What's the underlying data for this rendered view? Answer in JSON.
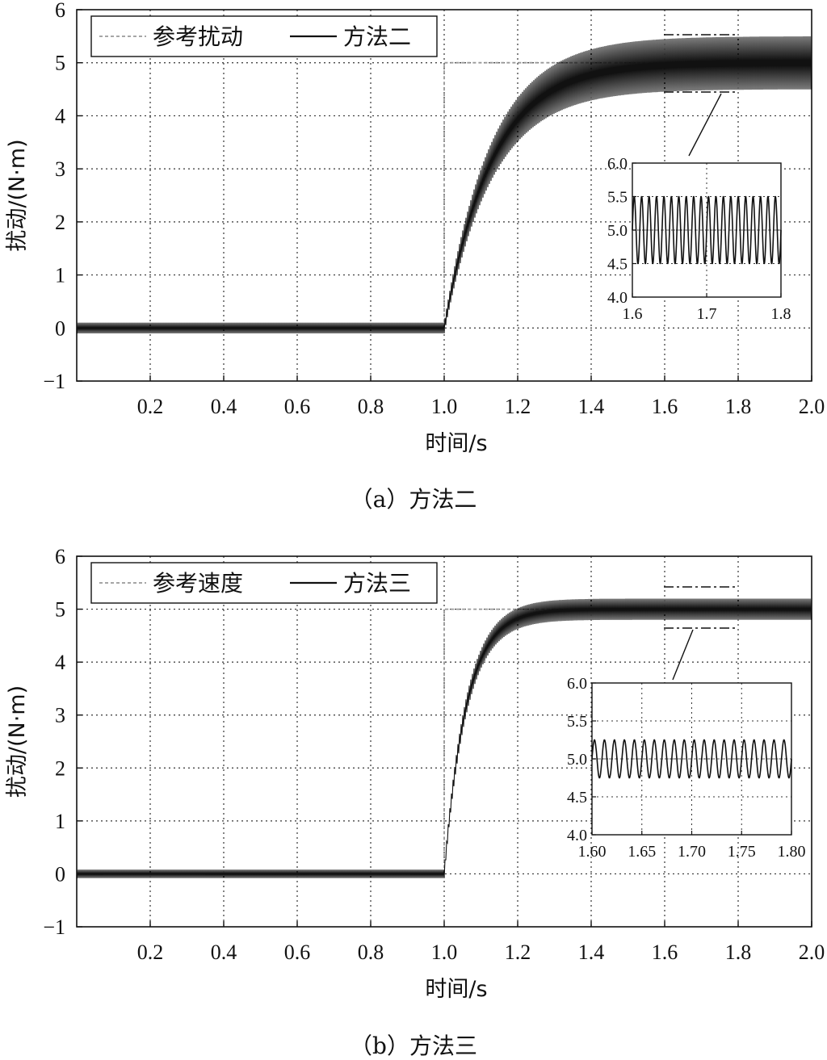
{
  "chart_data": [
    {
      "type": "line",
      "caption": "（a）方法二",
      "xlabel": "时间/s",
      "ylabel": "扰动/(N·m)",
      "xlim": [
        0,
        2.0
      ],
      "ylim": [
        -1,
        6
      ],
      "x_ticks": [
        "0.2",
        "0.4",
        "0.6",
        "0.8",
        "1.0",
        "1.2",
        "1.4",
        "1.6",
        "1.8",
        "2.0"
      ],
      "y_ticks": [
        "−1",
        "0",
        "1",
        "2",
        "3",
        "4",
        "5",
        "6"
      ],
      "grid": true,
      "legend_position": "top-left",
      "series": [
        {
          "name": "参考扰动",
          "style": "dashed",
          "color": "#999999",
          "points": [
            [
              0,
              0
            ],
            [
              1.0,
              0
            ],
            [
              1.0,
              5
            ],
            [
              2.0,
              5
            ]
          ]
        },
        {
          "name": "方法二",
          "style": "solid",
          "color": "#111111",
          "step_time": 1.0,
          "final_value": 5.0,
          "time_constant": 0.13,
          "ripple_amplitude_before": 0.1,
          "ripple_amplitude_after": 0.5,
          "ripple_frequency_hz": 100
        }
      ],
      "inset": {
        "xlim": [
          1.6,
          1.8
        ],
        "ylim": [
          4.0,
          6.0
        ],
        "x_ticks": [
          "1.6",
          "1.7",
          "1.8"
        ],
        "y_ticks": [
          "4.0",
          "4.5",
          "5.0",
          "5.5",
          "6.0"
        ],
        "zoom_range": {
          "x": [
            1.6,
            1.8
          ],
          "y": [
            4.5,
            5.5
          ]
        }
      }
    },
    {
      "type": "line",
      "caption": "（b）方法三",
      "xlabel": "时间/s",
      "ylabel": "扰动/(N·m)",
      "xlim": [
        0,
        2.0
      ],
      "ylim": [
        -1,
        6
      ],
      "x_ticks": [
        "0.2",
        "0.4",
        "0.6",
        "0.8",
        "1.0",
        "1.2",
        "1.4",
        "1.6",
        "1.8",
        "2.0"
      ],
      "y_ticks": [
        "−1",
        "0",
        "1",
        "2",
        "3",
        "4",
        "5",
        "6"
      ],
      "grid": true,
      "legend_position": "top-left",
      "series": [
        {
          "name": "参考速度",
          "style": "dashed",
          "color": "#999999",
          "points": [
            [
              0,
              0
            ],
            [
              1.0,
              0
            ],
            [
              1.0,
              5
            ],
            [
              2.0,
              5
            ]
          ]
        },
        {
          "name": "方法三",
          "style": "solid",
          "color": "#111111",
          "step_time": 1.0,
          "final_value": 5.0,
          "time_constant": 0.06,
          "ripple_amplitude_before": 0.08,
          "ripple_amplitude_after": 0.2,
          "ripple_frequency_hz": 100
        }
      ],
      "inset": {
        "xlim": [
          1.6,
          1.8
        ],
        "ylim": [
          4.0,
          6.0
        ],
        "x_ticks": [
          "1.60",
          "1.65",
          "1.70",
          "1.75",
          "1.80"
        ],
        "y_ticks": [
          "4.0",
          "4.5",
          "5.0",
          "5.5",
          "6.0"
        ],
        "zoom_range": {
          "x": [
            1.6,
            1.8
          ],
          "y": [
            4.75,
            5.25
          ]
        }
      }
    }
  ]
}
